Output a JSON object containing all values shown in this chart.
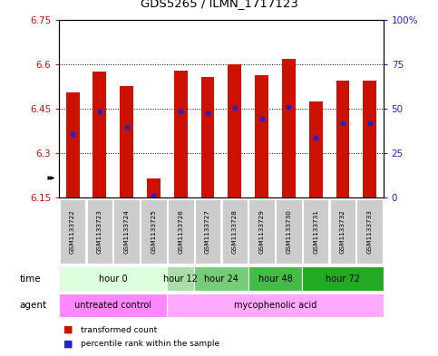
{
  "title": "GDS5265 / ILMN_1717123",
  "samples": [
    "GSM1133722",
    "GSM1133723",
    "GSM1133724",
    "GSM1133725",
    "GSM1133726",
    "GSM1133727",
    "GSM1133728",
    "GSM1133729",
    "GSM1133730",
    "GSM1133731",
    "GSM1133732",
    "GSM1133733"
  ],
  "bar_bottom": 6.15,
  "bar_tops_actual": [
    6.505,
    6.575,
    6.525,
    6.215,
    6.578,
    6.555,
    6.6,
    6.562,
    6.618,
    6.475,
    6.545,
    6.545
  ],
  "percentile_values": [
    6.363,
    6.44,
    6.39,
    6.157,
    6.44,
    6.435,
    6.453,
    6.415,
    6.457,
    6.352,
    6.4,
    6.402
  ],
  "ylim": [
    6.15,
    6.75
  ],
  "yticks": [
    6.15,
    6.3,
    6.45,
    6.6,
    6.75
  ],
  "ytick_labels": [
    "6.15",
    "6.3",
    "6.45",
    "6.6",
    "6.75"
  ],
  "right_yticks": [
    0,
    25,
    50,
    75,
    100
  ],
  "right_ytick_labels": [
    "0",
    "25",
    "50",
    "75",
    "100%"
  ],
  "bar_color": "#cc1100",
  "dot_color": "#2222cc",
  "time_groups": [
    {
      "label": "hour 0",
      "start": 0,
      "end": 4,
      "color": "#ddffdd"
    },
    {
      "label": "hour 12",
      "start": 4,
      "end": 5,
      "color": "#aaddaa"
    },
    {
      "label": "hour 24",
      "start": 5,
      "end": 7,
      "color": "#77cc77"
    },
    {
      "label": "hour 48",
      "start": 7,
      "end": 9,
      "color": "#44bb44"
    },
    {
      "label": "hour 72",
      "start": 9,
      "end": 12,
      "color": "#22aa22"
    }
  ],
  "agent_groups": [
    {
      "label": "untreated control",
      "start": 0,
      "end": 4,
      "color": "#ff88ff"
    },
    {
      "label": "mycophenolic acid",
      "start": 4,
      "end": 12,
      "color": "#ffaaff"
    }
  ],
  "legend_items": [
    {
      "label": "transformed count",
      "color": "#cc1100"
    },
    {
      "label": "percentile rank within the sample",
      "color": "#2222cc"
    }
  ],
  "grid_color": "black",
  "grid_linestyle": ":",
  "grid_linewidth": 0.7,
  "bar_width": 0.5,
  "left_label_color": "#cc1100",
  "right_label_color": "#2222cc",
  "axis_bg_color": "#ffffff",
  "sample_bg_color": "#cccccc"
}
